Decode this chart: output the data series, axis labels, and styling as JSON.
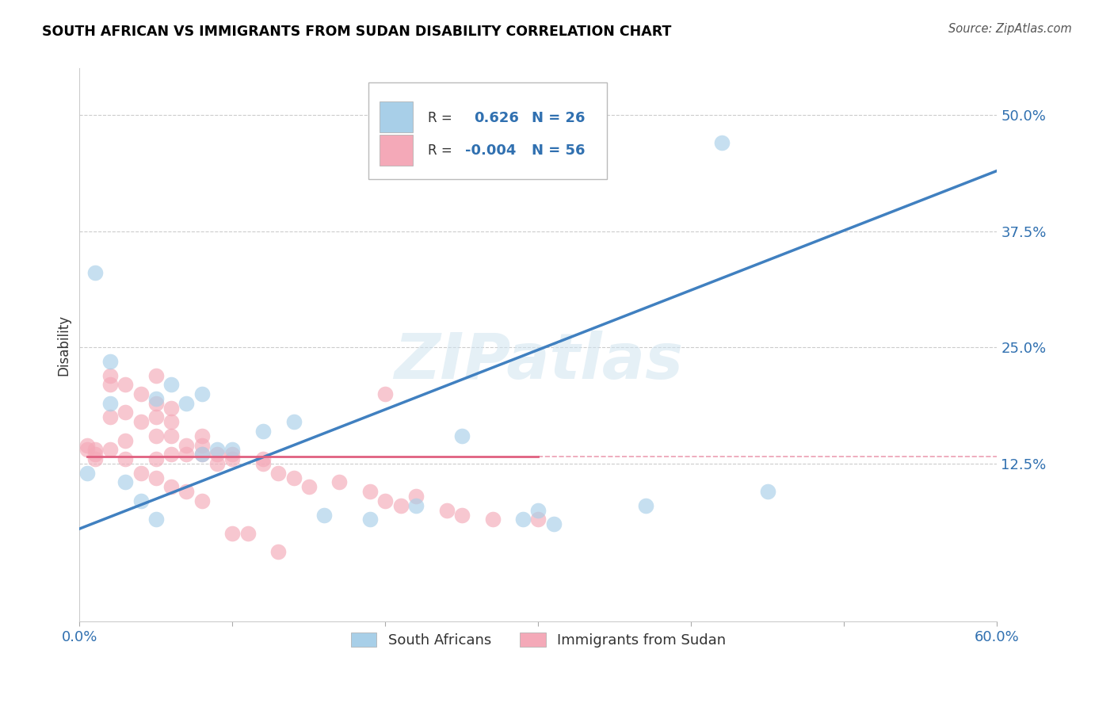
{
  "title": "SOUTH AFRICAN VS IMMIGRANTS FROM SUDAN DISABILITY CORRELATION CHART",
  "source": "Source: ZipAtlas.com",
  "ylabel": "Disability",
  "xlim": [
    0.0,
    0.6
  ],
  "ylim": [
    -0.045,
    0.55
  ],
  "xticks": [
    0.0,
    0.1,
    0.2,
    0.3,
    0.4,
    0.5,
    0.6
  ],
  "xticklabels": [
    "0.0%",
    "",
    "",
    "",
    "",
    "",
    "60.0%"
  ],
  "yticks": [
    0.125,
    0.25,
    0.375,
    0.5
  ],
  "yticklabels": [
    "12.5%",
    "25.0%",
    "37.5%",
    "50.0%"
  ],
  "blue_R": 0.626,
  "blue_N": 26,
  "pink_R": -0.004,
  "pink_N": 56,
  "blue_color": "#a8cfe8",
  "pink_color": "#f4a9b8",
  "blue_line_color": "#4080c0",
  "pink_line_color": "#e06080",
  "watermark": "ZIPatlas",
  "legend_blue_label": "South Africans",
  "legend_pink_label": "Immigrants from Sudan",
  "blue_line_x": [
    0.0,
    0.6
  ],
  "blue_line_y": [
    0.055,
    0.44
  ],
  "pink_line_x": [
    0.005,
    0.3
  ],
  "pink_line_y": [
    0.133,
    0.133
  ],
  "blue_scatter_x": [
    0.005,
    0.01,
    0.02,
    0.03,
    0.04,
    0.05,
    0.06,
    0.07,
    0.08,
    0.08,
    0.09,
    0.1,
    0.12,
    0.14,
    0.16,
    0.19,
    0.22,
    0.25,
    0.29,
    0.3,
    0.31,
    0.37,
    0.42,
    0.45,
    0.02,
    0.05
  ],
  "blue_scatter_y": [
    0.115,
    0.33,
    0.235,
    0.105,
    0.085,
    0.195,
    0.21,
    0.19,
    0.135,
    0.2,
    0.14,
    0.14,
    0.16,
    0.17,
    0.07,
    0.065,
    0.08,
    0.155,
    0.065,
    0.075,
    0.06,
    0.08,
    0.47,
    0.095,
    0.19,
    0.065
  ],
  "pink_scatter_x": [
    0.005,
    0.005,
    0.01,
    0.01,
    0.01,
    0.02,
    0.02,
    0.02,
    0.02,
    0.03,
    0.03,
    0.03,
    0.03,
    0.04,
    0.04,
    0.04,
    0.05,
    0.05,
    0.05,
    0.05,
    0.05,
    0.05,
    0.06,
    0.06,
    0.06,
    0.06,
    0.06,
    0.07,
    0.07,
    0.07,
    0.08,
    0.08,
    0.08,
    0.08,
    0.09,
    0.09,
    0.1,
    0.1,
    0.1,
    0.12,
    0.12,
    0.13,
    0.13,
    0.14,
    0.15,
    0.17,
    0.19,
    0.2,
    0.2,
    0.21,
    0.22,
    0.24,
    0.25,
    0.27,
    0.3,
    0.11
  ],
  "pink_scatter_y": [
    0.14,
    0.145,
    0.14,
    0.135,
    0.13,
    0.22,
    0.21,
    0.175,
    0.14,
    0.21,
    0.18,
    0.15,
    0.13,
    0.2,
    0.17,
    0.115,
    0.22,
    0.19,
    0.175,
    0.155,
    0.13,
    0.11,
    0.185,
    0.17,
    0.155,
    0.135,
    0.1,
    0.145,
    0.135,
    0.095,
    0.155,
    0.145,
    0.135,
    0.085,
    0.135,
    0.125,
    0.135,
    0.13,
    0.05,
    0.13,
    0.125,
    0.115,
    0.03,
    0.11,
    0.1,
    0.105,
    0.095,
    0.085,
    0.2,
    0.08,
    0.09,
    0.075,
    0.07,
    0.065,
    0.065,
    0.05
  ]
}
